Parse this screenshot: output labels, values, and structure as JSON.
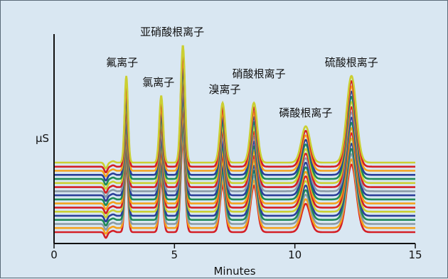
{
  "chart_data": {
    "type": "line",
    "title": "",
    "xlabel": "Minutes",
    "ylabel": "µS",
    "xlim": [
      0,
      15
    ],
    "x_ticks": [
      "0",
      "5",
      "10",
      "15"
    ],
    "grid": false,
    "legend": "none",
    "series_count": 18,
    "series_colors": [
      "#d42027",
      "#f4a21c",
      "#8a9aa6",
      "#1f8a57",
      "#2b3f99",
      "#cbcf32",
      "#d42027",
      "#f4a21c",
      "#1f8a57",
      "#2b3f99",
      "#8a9aa6",
      "#d42027",
      "#cbcf32",
      "#1f8a57",
      "#2b3f99",
      "#f4a21c",
      "#d42027",
      "#cbcf32"
    ],
    "peaks": [
      {
        "label": "氟离子",
        "retention_min": 3.0,
        "relative_height": 0.74
      },
      {
        "label": "氯离子",
        "retention_min": 4.45,
        "relative_height": 0.57
      },
      {
        "label": "亚硝酸根离子",
        "retention_min": 5.35,
        "relative_height": 1.0
      },
      {
        "label": "溴离子",
        "retention_min": 7.0,
        "relative_height": 0.51
      },
      {
        "label": "硝酸根离子",
        "retention_min": 8.3,
        "relative_height": 0.51
      },
      {
        "label": "磷酸根离子",
        "retention_min": 10.45,
        "relative_height": 0.31
      },
      {
        "label": "硫酸根离子",
        "retention_min": 12.35,
        "relative_height": 0.74
      }
    ]
  }
}
